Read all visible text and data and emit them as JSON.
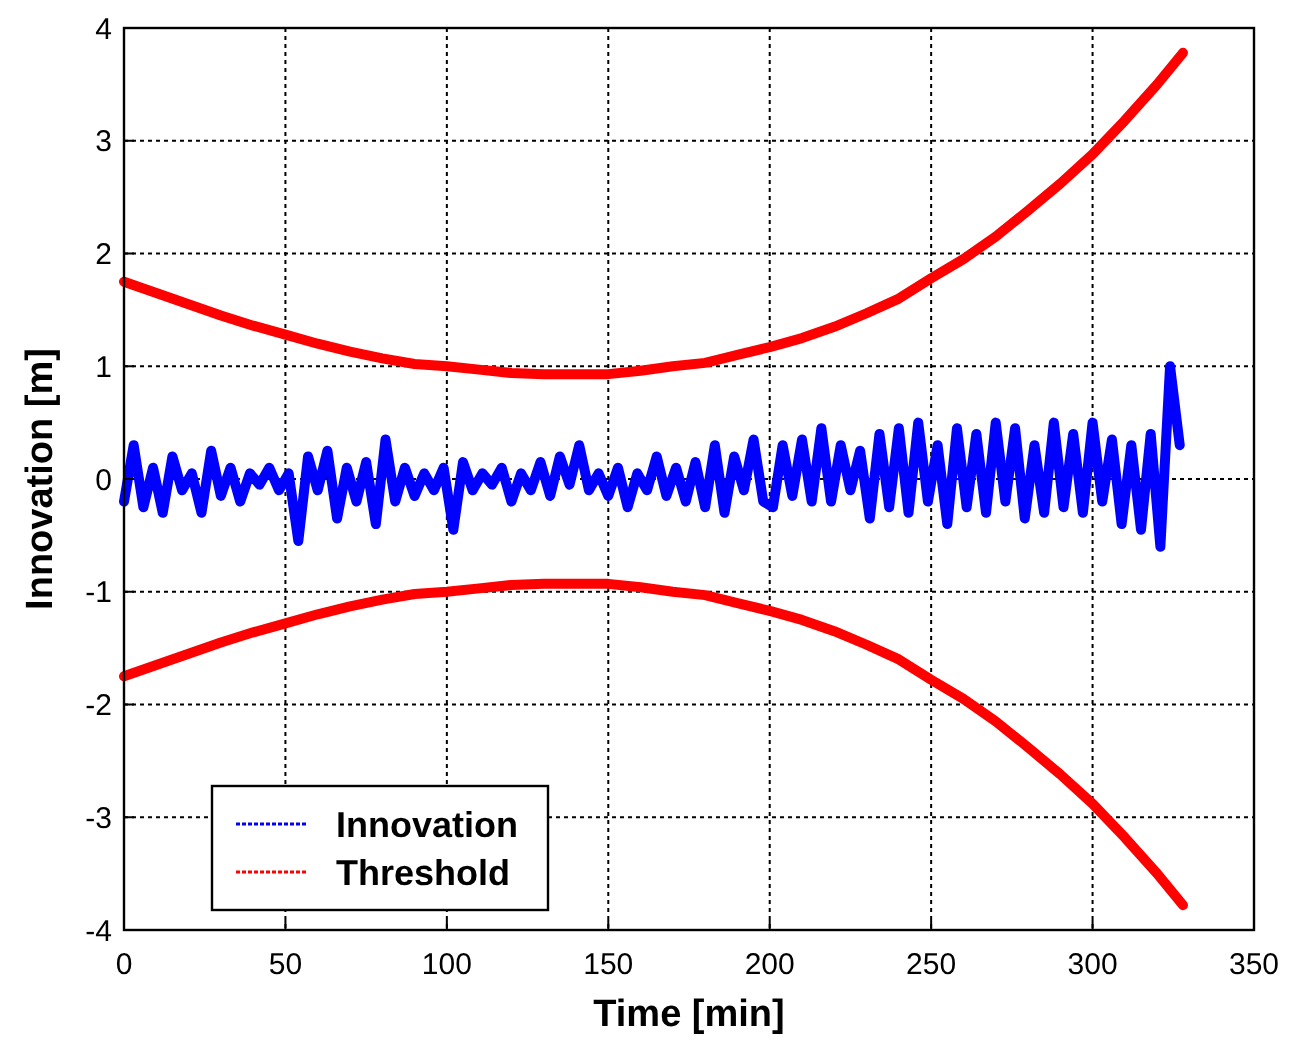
{
  "chart_data": {
    "type": "line",
    "xlabel": "Time [min]",
    "ylabel": "Innovation [m]",
    "xlim": [
      0,
      350
    ],
    "ylim": [
      -4,
      4
    ],
    "xticks": [
      0,
      50,
      100,
      150,
      200,
      250,
      300,
      {
        "value": 350,
        "label": "350"
      }
    ],
    "yticks": [
      -4,
      -3,
      -2,
      -1,
      0,
      1,
      2,
      3,
      4
    ],
    "grid": true,
    "legend": "bottom left",
    "line_style": "solid",
    "marker": "none",
    "series": [
      {
        "name": "Innovation",
        "color": "#0000ff",
        "x": [
          0,
          3,
          6,
          9,
          12,
          15,
          18,
          21,
          24,
          27,
          30,
          33,
          36,
          39,
          42,
          45,
          48,
          51,
          54,
          57,
          60,
          63,
          66,
          69,
          72,
          75,
          78,
          81,
          84,
          87,
          90,
          93,
          96,
          99,
          102,
          105,
          108,
          111,
          114,
          117,
          120,
          123,
          126,
          129,
          132,
          135,
          138,
          141,
          144,
          147,
          150,
          153,
          156,
          159,
          162,
          165,
          168,
          171,
          174,
          177,
          180,
          183,
          186,
          189,
          192,
          195,
          198,
          201,
          204,
          207,
          210,
          213,
          216,
          219,
          222,
          225,
          228,
          231,
          234,
          237,
          240,
          243,
          246,
          249,
          252,
          255,
          258,
          261,
          264,
          267,
          270,
          273,
          276,
          279,
          282,
          285,
          288,
          291,
          294,
          297,
          300,
          303,
          306,
          309,
          312,
          315,
          318,
          321,
          324,
          327
        ],
        "values": [
          -0.2,
          0.3,
          -0.25,
          0.1,
          -0.3,
          0.2,
          -0.1,
          0.05,
          -0.3,
          0.25,
          -0.15,
          0.1,
          -0.2,
          0.05,
          -0.05,
          0.1,
          -0.1,
          0.05,
          -0.55,
          0.2,
          -0.1,
          0.25,
          -0.35,
          0.1,
          -0.2,
          0.15,
          -0.4,
          0.35,
          -0.2,
          0.1,
          -0.15,
          0.05,
          -0.1,
          0.1,
          -0.45,
          0.15,
          -0.1,
          0.05,
          -0.05,
          0.1,
          -0.2,
          0.05,
          -0.1,
          0.15,
          -0.15,
          0.2,
          -0.05,
          0.3,
          -0.1,
          0.05,
          -0.15,
          0.1,
          -0.25,
          0.05,
          -0.1,
          0.2,
          -0.15,
          0.1,
          -0.2,
          0.15,
          -0.25,
          0.3,
          -0.3,
          0.2,
          -0.1,
          0.35,
          -0.2,
          -0.25,
          0.3,
          -0.15,
          0.35,
          -0.2,
          0.45,
          -0.2,
          0.3,
          -0.1,
          0.25,
          -0.35,
          0.4,
          -0.25,
          0.45,
          -0.3,
          0.5,
          -0.2,
          0.3,
          -0.4,
          0.45,
          -0.25,
          0.4,
          -0.3,
          0.5,
          -0.2,
          0.45,
          -0.35,
          0.3,
          -0.3,
          0.5,
          -0.25,
          0.4,
          -0.3,
          0.5,
          -0.2,
          0.35,
          -0.4,
          0.3,
          -0.45,
          0.4,
          -0.6,
          1.0,
          0.3
        ]
      },
      {
        "name": "Threshold",
        "color": "#ff0000",
        "x": [
          0,
          10,
          20,
          30,
          40,
          50,
          60,
          70,
          80,
          90,
          100,
          110,
          120,
          130,
          140,
          150,
          160,
          170,
          180,
          190,
          200,
          210,
          220,
          230,
          240,
          250,
          260,
          270,
          280,
          290,
          300,
          310,
          320,
          328
        ],
        "values": [
          1.75,
          1.65,
          1.55,
          1.45,
          1.36,
          1.28,
          1.2,
          1.13,
          1.07,
          1.02,
          1.0,
          0.97,
          0.94,
          0.93,
          0.93,
          0.93,
          0.96,
          1.0,
          1.03,
          1.1,
          1.17,
          1.25,
          1.35,
          1.47,
          1.6,
          1.78,
          1.95,
          2.15,
          2.38,
          2.62,
          2.88,
          3.18,
          3.5,
          3.78
        ]
      },
      {
        "color": "#ff0000",
        "x": [
          0,
          10,
          20,
          30,
          40,
          50,
          60,
          70,
          80,
          90,
          100,
          110,
          120,
          130,
          140,
          150,
          160,
          170,
          180,
          190,
          200,
          210,
          220,
          230,
          240,
          250,
          260,
          270,
          280,
          290,
          300,
          310,
          320,
          328
        ],
        "values": [
          -1.75,
          -1.65,
          -1.55,
          -1.45,
          -1.36,
          -1.28,
          -1.2,
          -1.13,
          -1.07,
          -1.02,
          -1.0,
          -0.97,
          -0.94,
          -0.93,
          -0.93,
          -0.93,
          -0.96,
          -1.0,
          -1.03,
          -1.1,
          -1.17,
          -1.25,
          -1.35,
          -1.47,
          -1.6,
          -1.78,
          -1.95,
          -2.15,
          -2.38,
          -2.62,
          -2.88,
          -3.18,
          -3.5,
          -3.78
        ]
      }
    ]
  }
}
